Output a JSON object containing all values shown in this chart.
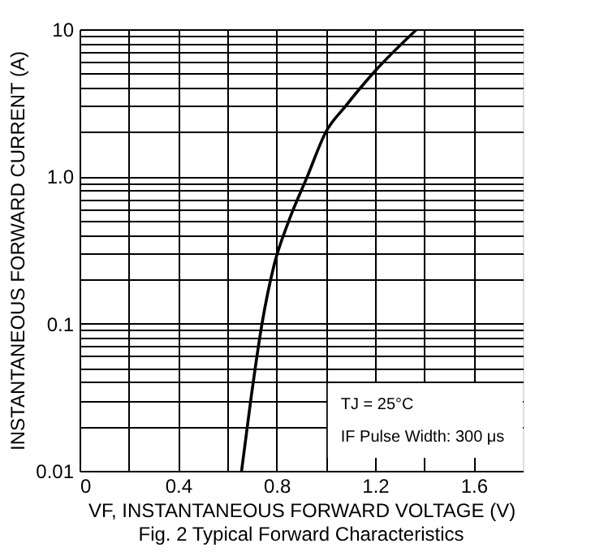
{
  "chart_data": {
    "type": "line",
    "title": "Fig. 2  Typical Forward Characteristics",
    "xlabel": "VF, INSTANTANEOUS FORWARD VOLTAGE (V)",
    "ylabel": "INSTANTANEOUS FORWARD CURRENT (A)",
    "annotations": [
      "TJ = 25°C",
      "IF Pulse Width: 300 μs"
    ],
    "series": [
      {
        "color": "#000000",
        "x": [
          0.658,
          0.695,
          0.741,
          0.79,
          0.85,
          0.925,
          1.0,
          1.08,
          1.2,
          1.37
        ],
        "values": [
          0.01,
          0.03,
          0.1,
          0.25,
          0.5,
          1.0,
          2.0,
          3.0,
          5.2,
          10
        ]
      }
    ],
    "xlim": [
      0,
      1.8
    ],
    "ylim": [
      0.01,
      10
    ],
    "log": "y",
    "grid": true,
    "marker": "none",
    "line_style": "solid",
    "xticks": [
      0,
      {
        "value": 0.2,
        "label": null
      },
      0.4,
      {
        "value": 0.6,
        "label": null
      },
      0.8,
      {
        "value": 1.0,
        "label": null
      },
      1.2,
      {
        "value": 1.4,
        "label": null
      },
      1.6
    ],
    "yticks": [
      0.01,
      {
        "value": 0.02,
        "label": null
      },
      {
        "value": 0.03,
        "label": null
      },
      {
        "value": 0.04,
        "label": null
      },
      {
        "value": 0.05,
        "label": null
      },
      {
        "value": 0.06,
        "label": null
      },
      {
        "value": 0.07,
        "label": null
      },
      {
        "value": 0.08,
        "label": null
      },
      {
        "value": 0.09,
        "label": null
      },
      0.1,
      {
        "value": 0.2,
        "label": null
      },
      {
        "value": 0.3,
        "label": null
      },
      {
        "value": 0.4,
        "label": null
      },
      {
        "value": 0.5,
        "label": null
      },
      {
        "value": 0.6,
        "label": null
      },
      {
        "value": 0.7,
        "label": null
      },
      {
        "value": 0.8,
        "label": null
      },
      {
        "value": 0.9,
        "label": null
      },
      {
        "value": 1,
        "label": "1.0"
      },
      {
        "value": 2,
        "label": null
      },
      {
        "value": 3,
        "label": null
      },
      {
        "value": 4,
        "label": null
      },
      {
        "value": 5,
        "label": null
      },
      {
        "value": 6,
        "label": null
      },
      {
        "value": 7,
        "label": null
      },
      {
        "value": 8,
        "label": null
      },
      {
        "value": 9,
        "label": null
      },
      10
    ]
  }
}
